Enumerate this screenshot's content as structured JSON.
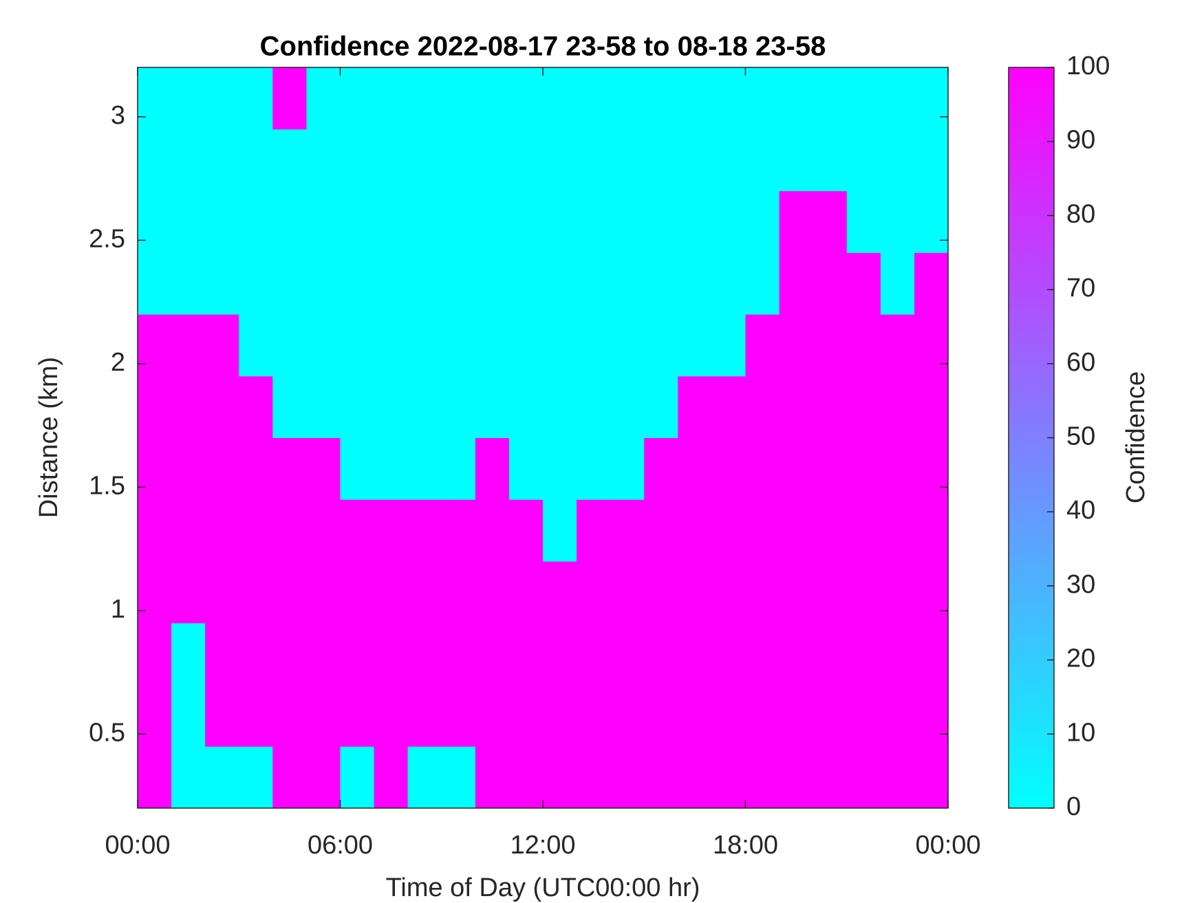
{
  "chart_data": {
    "type": "heatmap",
    "title": "Confidence 2022-08-17 23-58 to 08-18 23-58",
    "xlabel": "Time of Day (UTC00:00 hr)",
    "ylabel": "Distance (km)",
    "colorbar_label": "Confidence",
    "colormap": [
      "#00ffff",
      "#ff00ff"
    ],
    "xbins": [
      0,
      1,
      2,
      3,
      4,
      5,
      6,
      7,
      8,
      9,
      10,
      11,
      12,
      13,
      14,
      15,
      16,
      17,
      18,
      19,
      20,
      21,
      22,
      23,
      24
    ],
    "ybins": [
      0.2,
      0.45,
      0.7,
      0.95,
      1.2,
      1.45,
      1.7,
      1.95,
      2.2,
      2.45,
      2.7,
      2.95,
      3.2
    ],
    "z": [
      [
        100,
        0,
        0,
        0,
        100,
        100,
        0,
        100,
        0,
        0,
        100,
        100,
        100,
        100,
        100,
        100,
        100,
        100,
        100,
        100,
        100,
        100,
        100,
        100
      ],
      [
        100,
        0,
        100,
        100,
        100,
        100,
        100,
        100,
        100,
        100,
        100,
        100,
        100,
        100,
        100,
        100,
        100,
        100,
        100,
        100,
        100,
        100,
        100,
        100
      ],
      [
        100,
        0,
        100,
        100,
        100,
        100,
        100,
        100,
        100,
        100,
        100,
        100,
        100,
        100,
        100,
        100,
        100,
        100,
        100,
        100,
        100,
        100,
        100,
        100
      ],
      [
        100,
        100,
        100,
        100,
        100,
        100,
        100,
        100,
        100,
        100,
        100,
        100,
        100,
        100,
        100,
        100,
        100,
        100,
        100,
        100,
        100,
        100,
        100,
        100
      ],
      [
        100,
        100,
        100,
        100,
        100,
        100,
        100,
        100,
        100,
        100,
        100,
        100,
        0,
        100,
        100,
        100,
        100,
        100,
        100,
        100,
        100,
        100,
        100,
        100
      ],
      [
        100,
        100,
        100,
        100,
        100,
        100,
        0,
        0,
        0,
        0,
        100,
        0,
        0,
        0,
        0,
        100,
        100,
        100,
        100,
        100,
        100,
        100,
        100,
        100
      ],
      [
        100,
        100,
        100,
        100,
        0,
        0,
        0,
        0,
        0,
        0,
        0,
        0,
        0,
        0,
        0,
        0,
        100,
        100,
        100,
        100,
        100,
        100,
        100,
        100
      ],
      [
        100,
        100,
        100,
        0,
        0,
        0,
        0,
        0,
        0,
        0,
        0,
        0,
        0,
        0,
        0,
        0,
        0,
        0,
        100,
        100,
        100,
        100,
        100,
        100
      ],
      [
        0,
        0,
        0,
        0,
        0,
        0,
        0,
        0,
        0,
        0,
        0,
        0,
        0,
        0,
        0,
        0,
        0,
        0,
        0,
        100,
        100,
        100,
        0,
        100
      ],
      [
        0,
        0,
        0,
        0,
        0,
        0,
        0,
        0,
        0,
        0,
        0,
        0,
        0,
        0,
        0,
        0,
        0,
        0,
        0,
        100,
        100,
        0,
        0,
        0
      ],
      [
        0,
        0,
        0,
        0,
        0,
        0,
        0,
        0,
        0,
        0,
        0,
        0,
        0,
        0,
        0,
        0,
        0,
        0,
        0,
        0,
        0,
        0,
        0,
        0
      ],
      [
        0,
        0,
        0,
        0,
        100,
        0,
        0,
        0,
        0,
        0,
        0,
        0,
        0,
        0,
        0,
        0,
        0,
        0,
        0,
        0,
        0,
        0,
        0,
        0
      ]
    ],
    "xlim": [
      0,
      24
    ],
    "xticks": [
      {
        "value": 0,
        "label": "00:00"
      },
      {
        "value": 6,
        "label": "06:00"
      },
      {
        "value": 12,
        "label": "12:00"
      },
      {
        "value": 18,
        "label": "18:00"
      },
      {
        "value": 24,
        "label": "00:00"
      }
    ],
    "ylim": [
      0.2,
      3.2
    ],
    "yticks": [
      0.5,
      1,
      1.5,
      2,
      2.5,
      3
    ],
    "clim": [
      0,
      100
    ],
    "cticks": [
      0,
      10,
      20,
      30,
      40,
      50,
      60,
      70,
      80,
      90,
      100
    ]
  }
}
